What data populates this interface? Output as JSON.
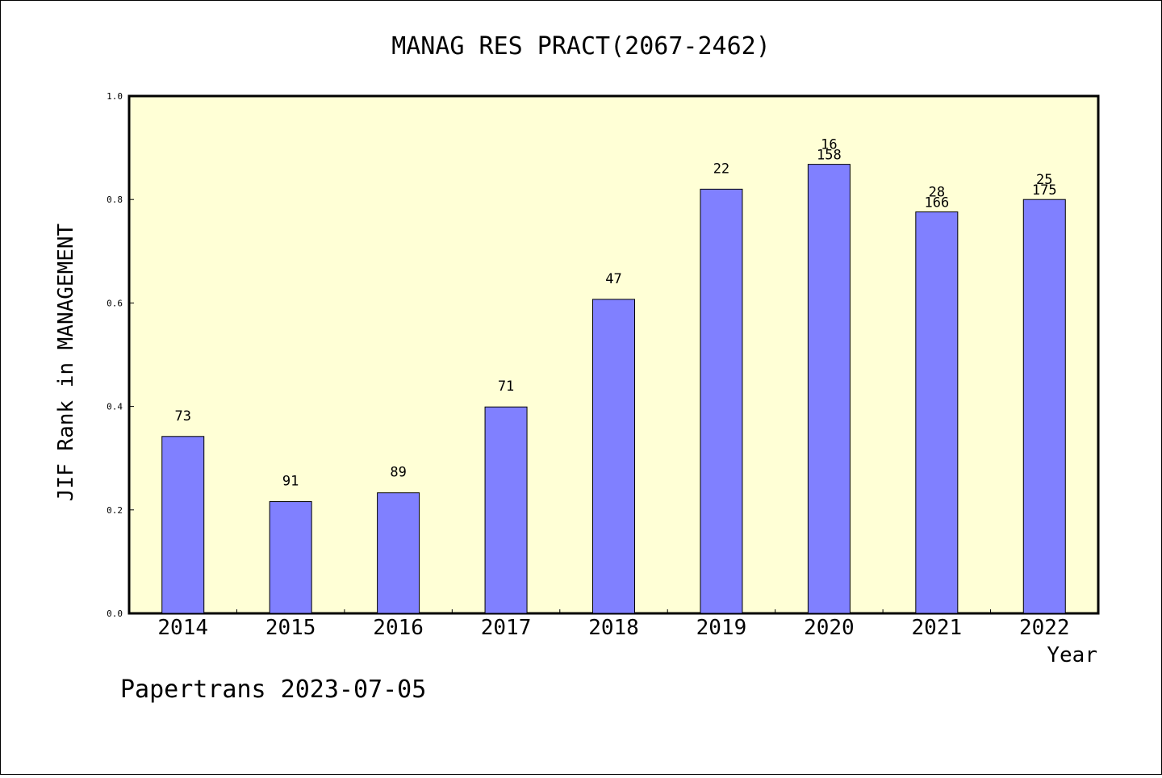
{
  "chart_data": {
    "type": "bar",
    "title": "MANAG RES PRACT(2067-2462)",
    "xlabel": "Year",
    "ylabel": "JIF Rank in MANAGEMENT",
    "ylim": [
      0,
      1.0
    ],
    "yticks": [
      "0.0",
      "0.2",
      "0.4",
      "0.6",
      "0.8",
      "1.0"
    ],
    "categories": [
      "2014",
      "2015",
      "2016",
      "2017",
      "2018",
      "2019",
      "2020",
      "2021",
      "2022"
    ],
    "values": [
      0.342,
      0.216,
      0.233,
      0.399,
      0.607,
      0.82,
      0.868,
      0.776,
      0.8
    ],
    "rank_labels": [
      "73",
      "91",
      "89",
      "71",
      "47",
      "22",
      "16",
      "28",
      "25"
    ],
    "total_labels": [
      "",
      "",
      "",
      "",
      "",
      "",
      "158",
      "166",
      "175"
    ],
    "grid": false,
    "colors": {
      "bar": "#8080ff",
      "plot_background": "#ffffd6",
      "axis": "#000000"
    }
  },
  "footer": {
    "credit": "Papertrans 2023-07-05"
  }
}
